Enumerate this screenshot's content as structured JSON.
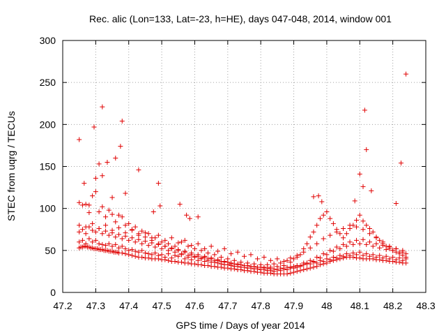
{
  "chart_data": {
    "type": "scatter",
    "title": "Rec. alic (Lon=133, Lat=-23, h=HE), days 047-048, 2014, window 001",
    "xlabel": "GPS time / Days of year 2014",
    "ylabel": "STEC from uqrg / TECUs",
    "xlim": [
      47.2,
      48.3
    ],
    "ylim": [
      0,
      300
    ],
    "xticks": [
      "47.2",
      "47.3",
      "47.4",
      "47.5",
      "47.6",
      "47.7",
      "47.8",
      "47.9",
      "48",
      "48.1",
      "48.2",
      "48.3"
    ],
    "yticks": [
      "0",
      "50",
      "100",
      "150",
      "200",
      "250",
      "300"
    ],
    "grid": true,
    "marker": "plus",
    "color": "#e00000",
    "series": [
      {
        "x": [
          47.25,
          47.255,
          47.26,
          47.265,
          47.27,
          47.275,
          47.28,
          47.285,
          47.29,
          47.295,
          47.3,
          47.305,
          47.31,
          47.315,
          47.32,
          47.325,
          47.33,
          47.335,
          47.34,
          47.345,
          47.35,
          47.355,
          47.36,
          47.365,
          47.37,
          47.38,
          47.39,
          47.4,
          47.41,
          47.42,
          47.43,
          47.44,
          47.45,
          47.46,
          47.47,
          47.48,
          47.49,
          47.5,
          47.51,
          47.52,
          47.53,
          47.54,
          47.55,
          47.56,
          47.57,
          47.58,
          47.59,
          47.6,
          47.61,
          47.62,
          47.63,
          47.64,
          47.65,
          47.66,
          47.67,
          47.68,
          47.69,
          47.7,
          47.71,
          47.72,
          47.73,
          47.74,
          47.75,
          47.76,
          47.77,
          47.78,
          47.79,
          47.8,
          47.81,
          47.82,
          47.83,
          47.84,
          47.85,
          47.86,
          47.87,
          47.88,
          47.89,
          47.9,
          47.91,
          47.92,
          47.93,
          47.94,
          47.95,
          47.96,
          47.97,
          47.98,
          47.99,
          48.0,
          48.01,
          48.02,
          48.03,
          48.04,
          48.05,
          48.06,
          48.07,
          48.08,
          48.09,
          48.1,
          48.11,
          48.12,
          48.13,
          48.14,
          48.15,
          48.16,
          48.17,
          48.18,
          48.19,
          48.2,
          48.21,
          48.22,
          48.23,
          48.24
        ],
        "y": [
          53,
          54,
          54,
          55,
          55,
          54,
          54,
          53,
          53,
          52,
          52,
          52,
          51,
          51,
          51,
          50,
          50,
          50,
          49,
          49,
          49,
          48,
          48,
          48,
          47,
          47,
          46,
          45,
          44,
          43,
          42,
          42,
          41,
          41,
          40,
          40,
          40,
          39,
          39,
          38,
          37,
          37,
          36,
          36,
          35,
          35,
          34,
          34,
          33,
          33,
          32,
          32,
          31,
          31,
          30,
          30,
          29,
          29,
          28,
          28,
          27,
          27,
          26,
          26,
          25,
          25,
          24,
          24,
          23,
          23,
          23,
          22,
          22,
          22,
          22,
          22,
          23,
          24,
          25,
          26,
          27,
          28,
          29,
          30,
          31,
          33,
          34,
          35,
          37,
          38,
          39,
          40,
          41,
          42,
          42,
          42,
          41,
          41,
          40,
          40,
          40,
          40,
          39,
          39,
          38,
          38,
          37,
          37,
          36,
          36,
          35,
          35
        ]
      },
      {
        "x": [
          47.25,
          47.26,
          47.27,
          47.28,
          47.29,
          47.3,
          47.31,
          47.32,
          47.33,
          47.34,
          47.35,
          47.36,
          47.37,
          47.38,
          47.39,
          47.4,
          47.41,
          47.42,
          47.43,
          47.44,
          47.45,
          47.46,
          47.47,
          47.48,
          47.49,
          47.5,
          47.51,
          47.52,
          47.53,
          47.54,
          47.55,
          47.56,
          47.57,
          47.58,
          47.59,
          47.6,
          47.61,
          47.62,
          47.63,
          47.64,
          47.65,
          47.66,
          47.67,
          47.68,
          47.69,
          47.7,
          47.71,
          47.72,
          47.73,
          47.74,
          47.75,
          47.76,
          47.77,
          47.78,
          47.79,
          47.8,
          47.81,
          47.82,
          47.83,
          47.84,
          47.85,
          47.86,
          47.87,
          47.88,
          47.89,
          47.9,
          47.91,
          47.92,
          47.93,
          47.94,
          47.95,
          47.96,
          47.97,
          47.98,
          47.99,
          48.0,
          48.01,
          48.02,
          48.03,
          48.04,
          48.05,
          48.06,
          48.07,
          48.08,
          48.09,
          48.1,
          48.11,
          48.12,
          48.13,
          48.14,
          48.15,
          48.16,
          48.17,
          48.18,
          48.19,
          48.2,
          48.21,
          48.22,
          48.23,
          48.24
        ],
        "y": [
          60,
          62,
          58,
          64,
          60,
          62,
          58,
          57,
          56,
          58,
          55,
          57,
          53,
          55,
          52,
          50,
          51,
          49,
          48,
          50,
          47,
          46,
          45,
          47,
          44,
          45,
          42,
          46,
          41,
          44,
          43,
          45,
          40,
          42,
          39,
          43,
          38,
          41,
          37,
          40,
          36,
          38,
          35,
          37,
          33,
          36,
          32,
          34,
          31,
          33,
          30,
          32,
          29,
          31,
          28,
          30,
          27,
          29,
          26,
          28,
          27,
          29,
          28,
          30,
          29,
          31,
          30,
          32,
          33,
          35,
          34,
          36,
          35,
          38,
          37,
          40,
          39,
          42,
          41,
          44,
          43,
          46,
          44,
          47,
          45,
          48,
          44,
          46,
          43,
          45,
          42,
          44,
          41,
          43,
          40,
          42,
          39,
          41,
          38,
          40
        ]
      },
      {
        "x": [
          47.25,
          47.26,
          47.27,
          47.28,
          47.29,
          47.3,
          47.31,
          47.32,
          47.33,
          47.34,
          47.35,
          47.36,
          47.37,
          47.38,
          47.39,
          47.4,
          47.41,
          47.42,
          47.43,
          47.44,
          47.45,
          47.46,
          47.47,
          47.48,
          47.49,
          47.5,
          47.51,
          47.52,
          47.53,
          47.54,
          47.55,
          47.56,
          47.57,
          47.58,
          47.59,
          47.6,
          47.61,
          47.62,
          47.63,
          47.64,
          47.65,
          47.66,
          47.67,
          47.68,
          47.69,
          47.7,
          47.71,
          47.72,
          47.73,
          47.74,
          47.75,
          47.76,
          47.77,
          47.78,
          47.79,
          47.8,
          47.81,
          47.82,
          47.83,
          47.84,
          47.85,
          47.86,
          47.87,
          47.88,
          47.89,
          47.9,
          47.91,
          47.92,
          47.93,
          47.94,
          47.95,
          47.96,
          47.97,
          47.98,
          47.99,
          48.0,
          48.01,
          48.02,
          48.03,
          48.04,
          48.05,
          48.06,
          48.07,
          48.08,
          48.09,
          48.1,
          48.11,
          48.12,
          48.13,
          48.14,
          48.15,
          48.16,
          48.17,
          48.18,
          48.19,
          48.2,
          48.21,
          48.22,
          48.23,
          48.24
        ],
        "y": [
          72,
          75,
          70,
          78,
          74,
          72,
          76,
          70,
          73,
          68,
          71,
          66,
          69,
          64,
          67,
          62,
          65,
          60,
          63,
          58,
          61,
          56,
          59,
          54,
          57,
          52,
          55,
          50,
          53,
          48,
          51,
          46,
          49,
          44,
          47,
          42,
          45,
          40,
          43,
          38,
          41,
          36,
          39,
          34,
          37,
          33,
          35,
          31,
          34,
          30,
          32,
          29,
          31,
          28,
          30,
          27,
          29,
          26,
          28,
          25,
          27,
          26,
          28,
          27,
          30,
          29,
          32,
          31,
          35,
          34,
          38,
          37,
          42,
          41,
          46,
          45,
          50,
          49,
          54,
          52,
          57,
          55,
          60,
          57,
          62,
          58,
          63,
          57,
          60,
          55,
          58,
          53,
          56,
          51,
          54,
          50,
          52,
          48,
          50,
          46
        ]
      },
      {
        "x": [
          47.25,
          47.27,
          47.29,
          47.31,
          47.33,
          47.35,
          47.37,
          47.39,
          47.41,
          47.43,
          47.45,
          47.47,
          47.49,
          47.51,
          47.53,
          47.55,
          47.57,
          47.59,
          47.61,
          47.63,
          47.65,
          47.67,
          47.69,
          47.71,
          47.73,
          47.75,
          47.77,
          47.79,
          47.81,
          47.83,
          47.85,
          47.87,
          47.89,
          47.91,
          47.93,
          47.95,
          47.97,
          47.99,
          48.01,
          48.03,
          48.05,
          48.07,
          48.09,
          48.11,
          48.13,
          48.15,
          48.17,
          48.19,
          48.21,
          48.23
        ],
        "y": [
          80,
          78,
          82,
          76,
          80,
          74,
          77,
          71,
          74,
          68,
          71,
          65,
          68,
          62,
          65,
          59,
          62,
          56,
          58,
          52,
          55,
          49,
          52,
          46,
          48,
          43,
          45,
          40,
          42,
          38,
          40,
          37,
          41,
          44,
          48,
          53,
          58,
          64,
          68,
          72,
          76,
          80,
          78,
          75,
          70,
          65,
          60,
          55,
          52,
          48
        ]
      },
      {
        "x": [
          47.25,
          47.26,
          47.27,
          47.28,
          47.29,
          47.3,
          47.31,
          47.32,
          47.33,
          47.34,
          47.35,
          47.36,
          47.37,
          47.38,
          47.39,
          47.4,
          47.41,
          47.42,
          47.43,
          47.44,
          47.45,
          47.46,
          47.47,
          47.48,
          47.49,
          47.5,
          47.51,
          47.52,
          47.53,
          47.54,
          47.55,
          47.56,
          47.57,
          47.58,
          47.59,
          47.6,
          47.61,
          47.62,
          47.63,
          47.64,
          47.65,
          47.66,
          47.67,
          47.68,
          47.69,
          47.7,
          47.71,
          47.72,
          47.73,
          47.74,
          47.75,
          47.76,
          47.77,
          47.78,
          47.79,
          47.8,
          47.81,
          47.82,
          47.83,
          47.84,
          47.85,
          47.86,
          47.87,
          47.88,
          47.89,
          47.9,
          47.91,
          47.92,
          47.93,
          47.94,
          47.95,
          47.96,
          47.97,
          47.98,
          47.99,
          48.0,
          48.01,
          48.02,
          48.03,
          48.04,
          48.05,
          48.06,
          48.07,
          48.08,
          48.09,
          48.1,
          48.11,
          48.12,
          48.13,
          48.14,
          48.15,
          48.16,
          48.17,
          48.18,
          48.19,
          48.2,
          48.21,
          48.22,
          48.23,
          48.24
        ],
        "y": [
          107,
          104,
          105,
          95,
          115,
          120,
          96,
          102,
          90,
          98,
          93,
          84,
          92,
          90,
          80,
          82,
          75,
          78,
          70,
          73,
          66,
          70,
          62,
          65,
          58,
          60,
          55,
          58,
          52,
          55,
          50,
          60,
          48,
          55,
          45,
          52,
          43,
          50,
          42,
          47,
          40,
          45,
          38,
          42,
          36,
          40,
          34,
          38,
          33,
          36,
          32,
          35,
          31,
          34,
          30,
          33,
          30,
          33,
          30,
          34,
          31,
          35,
          32,
          38,
          36,
          40,
          42,
          45,
          52,
          58,
          66,
          72,
          80,
          88,
          92,
          96,
          88,
          82,
          75,
          70,
          65,
          70,
          76,
          80,
          86,
          92,
          85,
          80,
          76,
          72,
          66,
          62,
          58,
          55,
          52,
          50,
          48,
          46,
          44,
          42
        ]
      },
      {
        "x": [
          47.25,
          47.265,
          47.28,
          47.295,
          47.31,
          47.32,
          47.335,
          47.35,
          47.36,
          47.375,
          47.38,
          47.39,
          47.43,
          47.475,
          47.49,
          47.495,
          47.555,
          47.575,
          47.585,
          47.61,
          47.96,
          47.975,
          47.985,
          48.085,
          48.1,
          48.11,
          48.115,
          48.12,
          48.135,
          48.21,
          48.225,
          48.24
        ],
        "y": [
          182,
          130,
          104,
          197,
          153,
          139,
          155,
          113,
          160,
          174,
          204,
          118,
          146,
          96,
          130,
          103,
          105,
          92,
          88,
          90,
          114,
          115,
          108,
          109,
          141,
          126,
          217,
          170,
          121,
          106,
          154,
          260
        ]
      },
      {
        "x": [
          47.3,
          47.32
        ],
        "y": [
          136,
          221
        ]
      }
    ]
  }
}
